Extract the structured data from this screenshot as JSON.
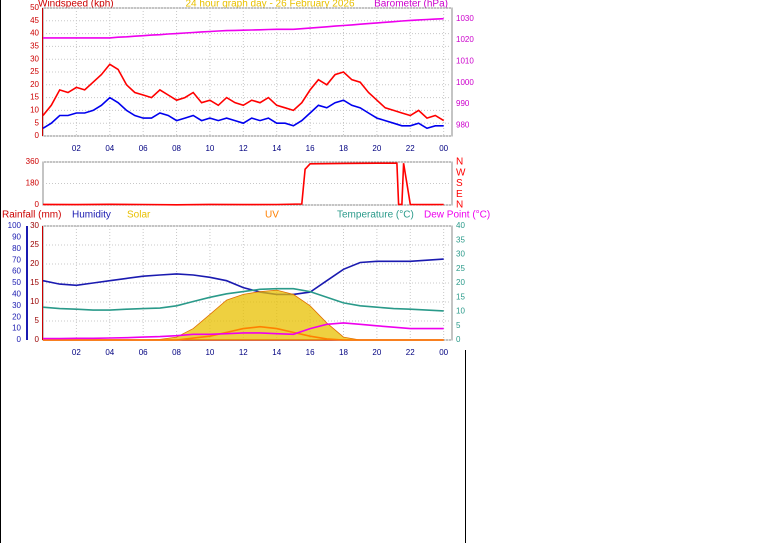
{
  "chart_data": [
    {
      "type": "line",
      "title": "24 hour graph day - 26 February 2026",
      "ylabel": "Windspeed (kph)",
      "y2label": "Barometer (hPa)",
      "x": [
        0,
        0.5,
        1,
        1.5,
        2,
        2.5,
        3,
        3.5,
        4,
        4.5,
        5,
        5.5,
        6,
        6.5,
        7,
        7.5,
        8,
        8.5,
        9,
        9.5,
        10,
        10.5,
        11,
        11.5,
        12,
        12.5,
        13,
        13.5,
        14,
        14.5,
        15,
        15.5,
        16,
        16.5,
        17,
        17.5,
        18,
        18.5,
        19,
        19.5,
        20,
        20.5,
        21,
        21.5,
        22,
        22.5,
        23,
        23.5,
        24
      ],
      "xlim": [
        0,
        24.5
      ],
      "xticks": [
        {
          "value": 2,
          "label": "02"
        },
        {
          "value": 4,
          "label": "04"
        },
        {
          "value": 6,
          "label": "06"
        },
        {
          "value": 8,
          "label": "08"
        },
        10,
        12,
        14,
        16,
        18,
        20,
        22,
        {
          "value": 24,
          "label": "00"
        }
      ],
      "ylim": [
        0,
        50
      ],
      "yticks": [
        0,
        5,
        10,
        15,
        20,
        25,
        30,
        35,
        40,
        45,
        50
      ],
      "y2lim": [
        975,
        1035
      ],
      "y2ticks": [
        980,
        990,
        1000,
        1010,
        1020,
        1030
      ],
      "grid": true,
      "series": [
        {
          "color": "#ff0000",
          "values": [
            8,
            12,
            18,
            17,
            19,
            18,
            21,
            24,
            28,
            26,
            20,
            17,
            16,
            15,
            18,
            16,
            14,
            15,
            17,
            13,
            14,
            12,
            15,
            13,
            12,
            14,
            13,
            15,
            12,
            11,
            10,
            13,
            18,
            22,
            20,
            24,
            25,
            22,
            21,
            17,
            14,
            11,
            10,
            9,
            8,
            10,
            7,
            8,
            6
          ]
        },
        {
          "color": "#0000ee",
          "values": [
            3,
            5,
            8,
            8,
            9,
            9,
            10,
            12,
            15,
            13,
            10,
            8,
            7,
            7,
            9,
            8,
            6,
            7,
            8,
            6,
            7,
            6,
            7,
            6,
            5,
            7,
            6,
            7,
            5,
            5,
            4,
            6,
            9,
            12,
            11,
            13,
            14,
            12,
            11,
            9,
            7,
            6,
            5,
            4,
            4,
            5,
            3,
            4,
            4
          ]
        },
        {
          "color": "#ee00ee",
          "axis": "y2",
          "values": [
            1021,
            1021,
            1021,
            1021,
            1021,
            1021,
            1021,
            1021,
            1021,
            1021.3,
            1021.5,
            1021.8,
            1022,
            1022.3,
            1022.5,
            1022.8,
            1023,
            1023.3,
            1023.5,
            1023.8,
            1024,
            1024.2,
            1024.4,
            1024.5,
            1024.6,
            1024.7,
            1024.8,
            1024.9,
            1025,
            1025,
            1025,
            1025.3,
            1025.6,
            1025.9,
            1026.2,
            1026.5,
            1026.8,
            1027.1,
            1027.4,
            1027.7,
            1028,
            1028.3,
            1028.6,
            1028.9,
            1029.2,
            1029.4,
            1029.6,
            1029.8,
            1030
          ]
        }
      ]
    },
    {
      "type": "line",
      "x": [
        0,
        2,
        4,
        6,
        8,
        10,
        12,
        14,
        15.5,
        15.7,
        16,
        18,
        20,
        21.2,
        21.3,
        21.5,
        21.6,
        22,
        23,
        24
      ],
      "xlim": [
        0,
        24.5
      ],
      "ylim": [
        0,
        360
      ],
      "yticks": [
        0,
        180,
        360
      ],
      "y2lim": [
        0,
        360
      ],
      "y2ticks": [
        {
          "value": 360,
          "label": "N"
        },
        {
          "value": 270,
          "label": "W"
        },
        {
          "value": 180,
          "label": "S"
        },
        {
          "value": 90,
          "label": "E"
        },
        {
          "value": 0,
          "label": "N"
        }
      ],
      "grid": true,
      "series": [
        {
          "color": "#ff0000",
          "values": [
            5,
            3,
            6,
            4,
            2,
            5,
            3,
            4,
            8,
            300,
            345,
            348,
            350,
            350,
            5,
            5,
            350,
            5,
            3,
            4
          ]
        }
      ]
    },
    {
      "type": "line",
      "x": [
        0,
        1,
        2,
        3,
        4,
        5,
        6,
        7,
        8,
        9,
        10,
        11,
        12,
        13,
        14,
        15,
        16,
        17,
        18,
        19,
        20,
        21,
        22,
        23,
        24
      ],
      "xlim": [
        0,
        24.5
      ],
      "xticks": [
        {
          "value": 2,
          "label": "02"
        },
        {
          "value": 4,
          "label": "04"
        },
        {
          "value": 6,
          "label": "06"
        },
        {
          "value": 8,
          "label": "08"
        },
        10,
        12,
        14,
        16,
        18,
        20,
        22,
        {
          "value": 24,
          "label": "00"
        }
      ],
      "ylim": [
        0,
        30
      ],
      "yticks": [
        0,
        5,
        10,
        15,
        20,
        25,
        30
      ],
      "y2lim": [
        0,
        40
      ],
      "y2ticks": [
        0,
        5,
        10,
        15,
        20,
        25,
        30,
        35,
        40
      ],
      "y3lim": [
        0,
        100
      ],
      "y3ticks": [
        0,
        10,
        20,
        30,
        40,
        50,
        60,
        70,
        80,
        90,
        100
      ],
      "grid": true,
      "series": [
        {
          "name": "Rainfall (mm)",
          "color": "#cc0000",
          "values": [
            0,
            0,
            0,
            0,
            0,
            0,
            0,
            0,
            0,
            0,
            0,
            0,
            0,
            0,
            0,
            0,
            0,
            0,
            0,
            0,
            0,
            0,
            0,
            0,
            0
          ]
        },
        {
          "name": "Humidity",
          "color": "#1a1ab0",
          "axis": "y3",
          "values": [
            52,
            49,
            48,
            50,
            52,
            54,
            56,
            57,
            58,
            57,
            55,
            52,
            46,
            42,
            40,
            40,
            42,
            52,
            62,
            68,
            69,
            69,
            69,
            70,
            71
          ]
        },
        {
          "name": "Solar",
          "color": "#e8c000",
          "axis": "y2",
          "style": "area",
          "values": [
            0,
            0,
            0,
            0,
            0,
            0,
            0,
            0.2,
            1,
            4,
            9,
            14,
            16,
            17,
            17.5,
            16,
            12,
            6,
            1,
            0,
            0,
            0,
            0,
            0,
            0
          ]
        },
        {
          "name": "UV",
          "color": "#ff8000",
          "values": [
            0,
            0,
            0,
            0,
            0,
            0,
            0,
            0,
            0,
            0.5,
            1,
            2,
            3,
            3.5,
            3,
            2,
            1,
            0.3,
            0,
            0,
            0,
            0,
            0,
            0,
            0
          ]
        },
        {
          "name": "Temperature (°C)",
          "color": "#2a9a8a",
          "axis": "y2",
          "values": [
            11.5,
            11,
            10.8,
            10.5,
            10.5,
            10.8,
            11,
            11.2,
            12,
            13.5,
            15,
            16.2,
            17,
            17.8,
            18,
            18,
            17,
            15,
            13,
            12,
            11.5,
            11,
            10.8,
            10.5,
            10.2
          ]
        },
        {
          "name": "Dew Point (°C)",
          "color": "#ee00ee",
          "axis": "y2",
          "values": [
            0.5,
            0.5,
            0.6,
            0.6,
            0.7,
            0.8,
            1,
            1.2,
            1.5,
            2,
            2,
            2.2,
            2.5,
            2.5,
            2.2,
            2,
            4,
            5.5,
            6,
            5.5,
            5,
            4.5,
            4,
            4,
            4
          ]
        }
      ]
    }
  ]
}
